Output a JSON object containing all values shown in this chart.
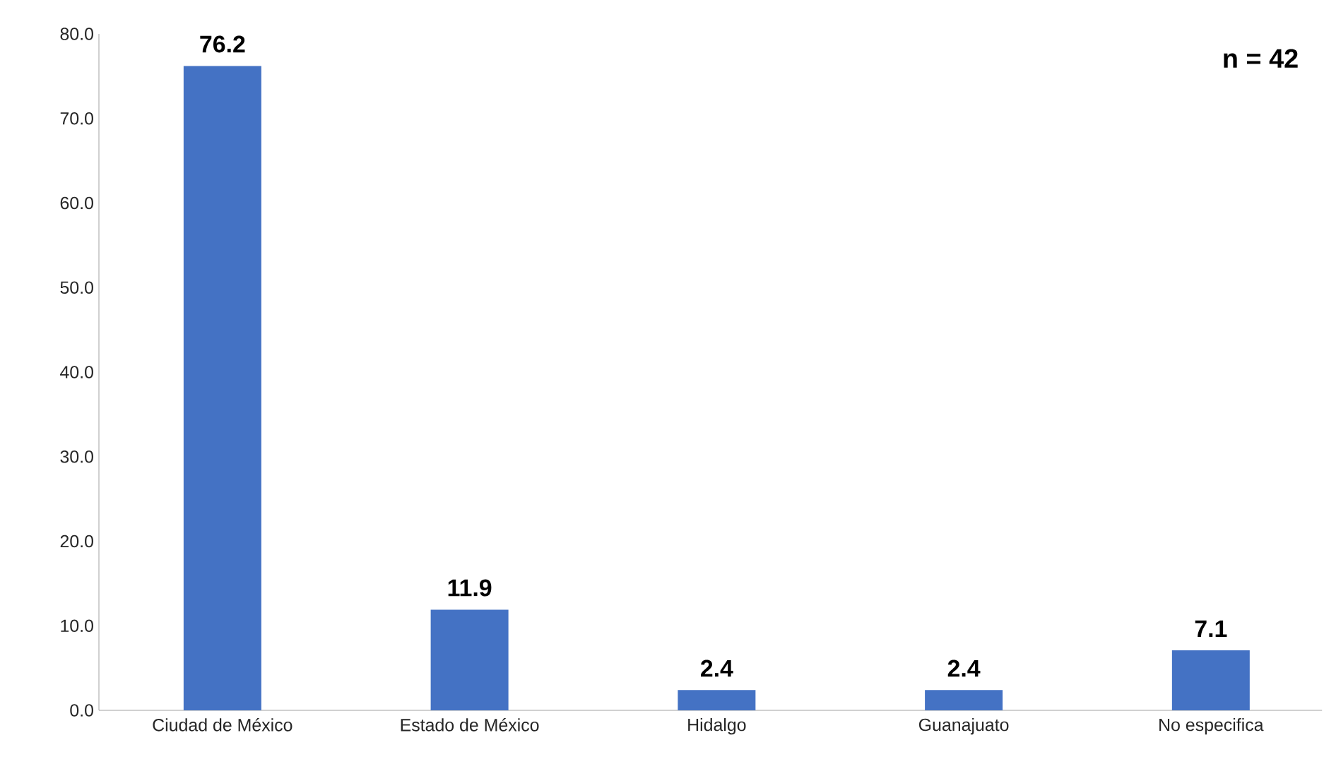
{
  "chart_data": {
    "type": "bar",
    "categories": [
      "Ciudad de México",
      "Estado de México",
      "Hidalgo",
      "Guanajuato",
      "No especifica"
    ],
    "values": [
      76.2,
      11.9,
      2.4,
      2.4,
      7.1
    ],
    "color": "#4472c4",
    "ylim": [
      0,
      80
    ],
    "yticks": [
      {
        "value": 0,
        "label": "0.0"
      },
      {
        "value": 10,
        "label": "10.0"
      },
      {
        "value": 20,
        "label": "20.0"
      },
      {
        "value": 30,
        "label": "30.0"
      },
      {
        "value": 40,
        "label": "40.0"
      },
      {
        "value": 50,
        "label": "50.0"
      },
      {
        "value": 60,
        "label": "60.0"
      },
      {
        "value": 70,
        "label": "70.0"
      },
      {
        "value": 80,
        "label": "80.0"
      }
    ],
    "data_labels": true,
    "annotations": [
      "n = 42"
    ]
  }
}
